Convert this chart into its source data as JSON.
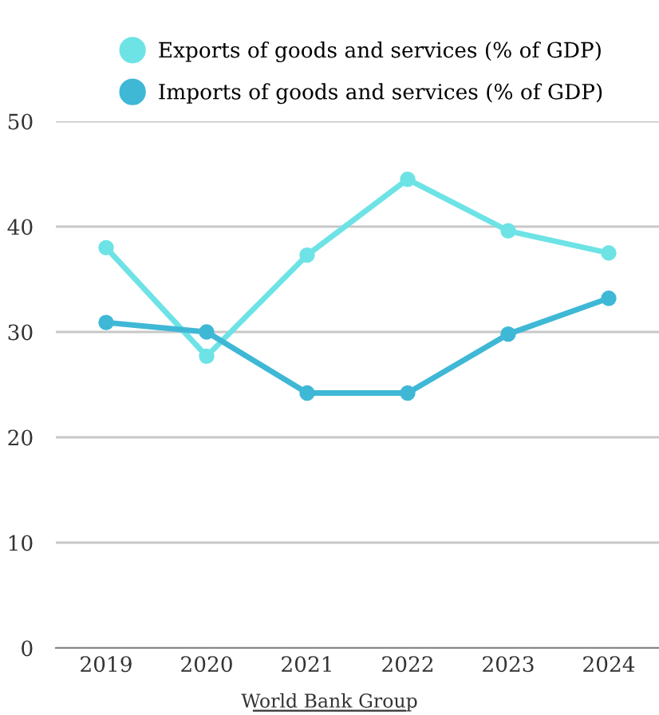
{
  "chart_data": {
    "type": "line",
    "categories": [
      "2019",
      "2020",
      "2021",
      "2022",
      "2023",
      "2024"
    ],
    "series": [
      {
        "name": "Exports of goods and services (% of GDP)",
        "color": "#6ee3e6",
        "values": [
          38.0,
          27.7,
          37.3,
          44.5,
          39.6,
          37.5
        ]
      },
      {
        "name": "Imports of goods and services (% of GDP)",
        "color": "#3fb8d6",
        "values": [
          30.9,
          30.0,
          24.2,
          24.2,
          29.8,
          33.2
        ]
      }
    ],
    "ylim": [
      0,
      50
    ],
    "yticks": [
      0,
      10,
      20,
      30,
      40,
      50
    ],
    "grid": "y",
    "legend": "top",
    "marker": "circle",
    "line_style": "solid",
    "annotations": [
      "World Bank Group"
    ]
  }
}
